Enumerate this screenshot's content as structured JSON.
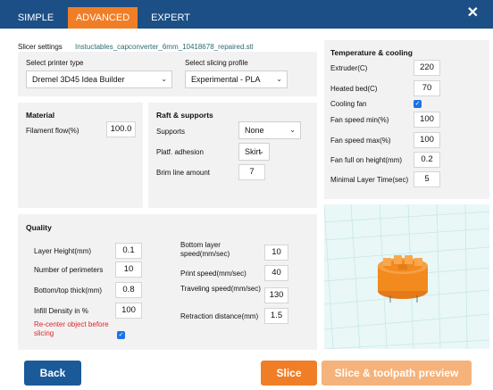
{
  "tabs": [
    "SIMPLE",
    "ADVANCED",
    "EXPERT"
  ],
  "active_tab": "ADVANCED",
  "close_icon": "close-icon",
  "slicer": {
    "label": "Slicer settings",
    "filename": "Instuctables_capconverter_6mm_10418678_repaired.stl"
  },
  "printer": {
    "type_label": "Select printer type",
    "type_value": "Dremel 3D45 Idea Builder",
    "profile_label": "Select slicing profile",
    "profile_value": "Experimental - PLA"
  },
  "material": {
    "header": "Material",
    "flow_label": "Filament flow(%)",
    "flow_value": "100.0"
  },
  "raft": {
    "header": "Raft & supports",
    "supports_label": "Supports",
    "supports_value": "None",
    "adhesion_label": "Platf. adhesion",
    "adhesion_value": "Skirt",
    "brim_label": "Brim line amount",
    "brim_value": "7"
  },
  "temperature": {
    "header": "Temperature & cooling",
    "extruder_label": "Extruder(C)",
    "extruder_value": "220",
    "bed_label": "Heated bed(C)",
    "bed_value": "70",
    "fan_label": "Cooling fan",
    "fan_checked": true,
    "fan_min_label": "Fan speed min(%)",
    "fan_min_value": "100",
    "fan_max_label": "Fan speed max(%)",
    "fan_max_value": "100",
    "fan_full_label": "Fan full on height(mm)",
    "fan_full_value": "0.2",
    "min_layer_label": "Minimal Layer Time(sec)",
    "min_layer_value": "5"
  },
  "quality": {
    "header": "Quality",
    "layer_height_label": "Layer Height(mm)",
    "layer_height_value": "0.1",
    "perimeters_label": "Number of perimeters",
    "perimeters_value": "10",
    "bottom_top_label": "Bottom/top thick(mm)",
    "bottom_top_value": "0.8",
    "infill_label": "Infill Density in %",
    "infill_value": "100",
    "recenter_label": "Re-center object before slicing",
    "recenter_checked": true,
    "bottom_speed_label": "Bottom layer speed(mm/sec)",
    "bottom_speed_value": "10",
    "print_speed_label": "Print speed(mm/sec)",
    "print_speed_value": "40",
    "travel_speed_label": "Traveling speed(mm/sec)",
    "travel_speed_value": "130",
    "retraction_label": "Retraction distance(mm)",
    "retraction_value": "1.5"
  },
  "buttons": {
    "back": "Back",
    "slice": "Slice",
    "slice_preview": "Slice & toolpath preview"
  },
  "colors": {
    "topbar": "#1c4f86",
    "accent": "#f07e26",
    "back": "#1b5a99",
    "preview": "#f5b27a",
    "model": "#f28a1e"
  }
}
